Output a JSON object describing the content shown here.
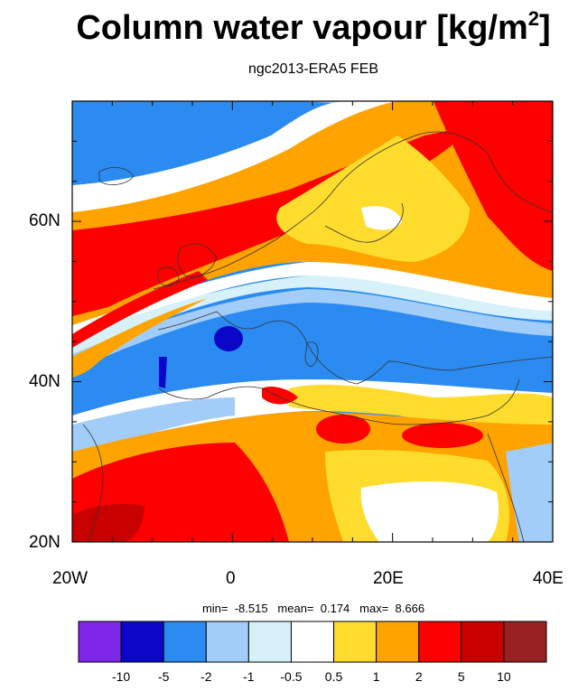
{
  "title": {
    "main": "Column water vapour [kg/m",
    "sup": "2",
    "close": "]"
  },
  "subtitle": "ngc2013-ERA5 FEB",
  "stats": {
    "min": "-8.515",
    "mean": "0.174",
    "max": "8.666"
  },
  "axes": {
    "x_labels": [
      "20W",
      "0",
      "20E",
      "40E"
    ],
    "y_labels": [
      "60N",
      "40N",
      "20N"
    ]
  },
  "colorbar": {
    "labels": [
      "-10",
      "-5",
      "-2",
      "-1",
      "-0.5",
      "0.5",
      "1",
      "2",
      "5",
      "10"
    ],
    "colors": [
      "#7f27e8",
      "#0a07c8",
      "#2b8bf0",
      "#a2cdf8",
      "#d7f1fb",
      "#ffffff",
      "#fedc2e",
      "#fea300",
      "#fd0100",
      "#c80000",
      "#9a2121"
    ]
  },
  "chart_data": {
    "type": "heatmap",
    "title": "Column water vapour [kg/m2]",
    "subtitle": "ngc2013-ERA5 FEB",
    "x_range": [
      -20,
      40
    ],
    "y_range": [
      20,
      75
    ],
    "x_ticks": [
      "20W",
      "0",
      "20E",
      "40E"
    ],
    "y_ticks": [
      "60N",
      "40N",
      "20N"
    ],
    "color_levels": [
      -10,
      -5,
      -2,
      -1,
      -0.5,
      0.5,
      1,
      2,
      5,
      10
    ],
    "min": -8.515,
    "mean": 0.174,
    "max": 8.666
  }
}
